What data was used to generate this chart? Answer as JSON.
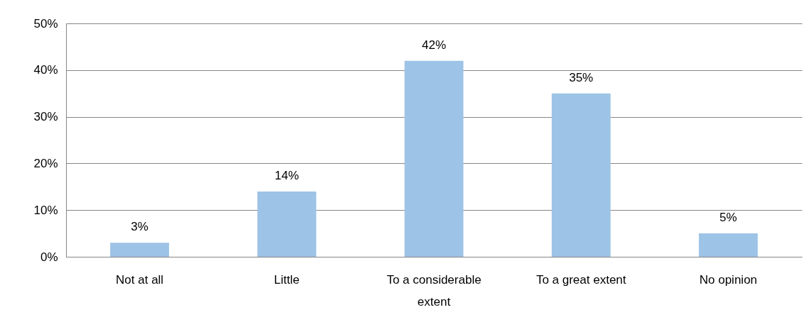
{
  "chart_data": {
    "type": "bar",
    "categories": [
      "Not at all",
      "Little",
      "To a considerable extent",
      "To a great extent",
      "No opinion"
    ],
    "values": [
      3,
      14,
      42,
      35,
      5
    ],
    "value_labels": [
      "3%",
      "14%",
      "42%",
      "35%",
      "5%"
    ],
    "color": "#9dc3e6",
    "ylim": [
      0,
      50
    ],
    "yticks": [
      {
        "value": 0,
        "label": "0%"
      },
      {
        "value": 10,
        "label": "10%"
      },
      {
        "value": 20,
        "label": "20%"
      },
      {
        "value": 30,
        "label": "30%"
      },
      {
        "value": 40,
        "label": "40%"
      },
      {
        "value": 50,
        "label": "50%"
      }
    ],
    "grid": "y"
  }
}
